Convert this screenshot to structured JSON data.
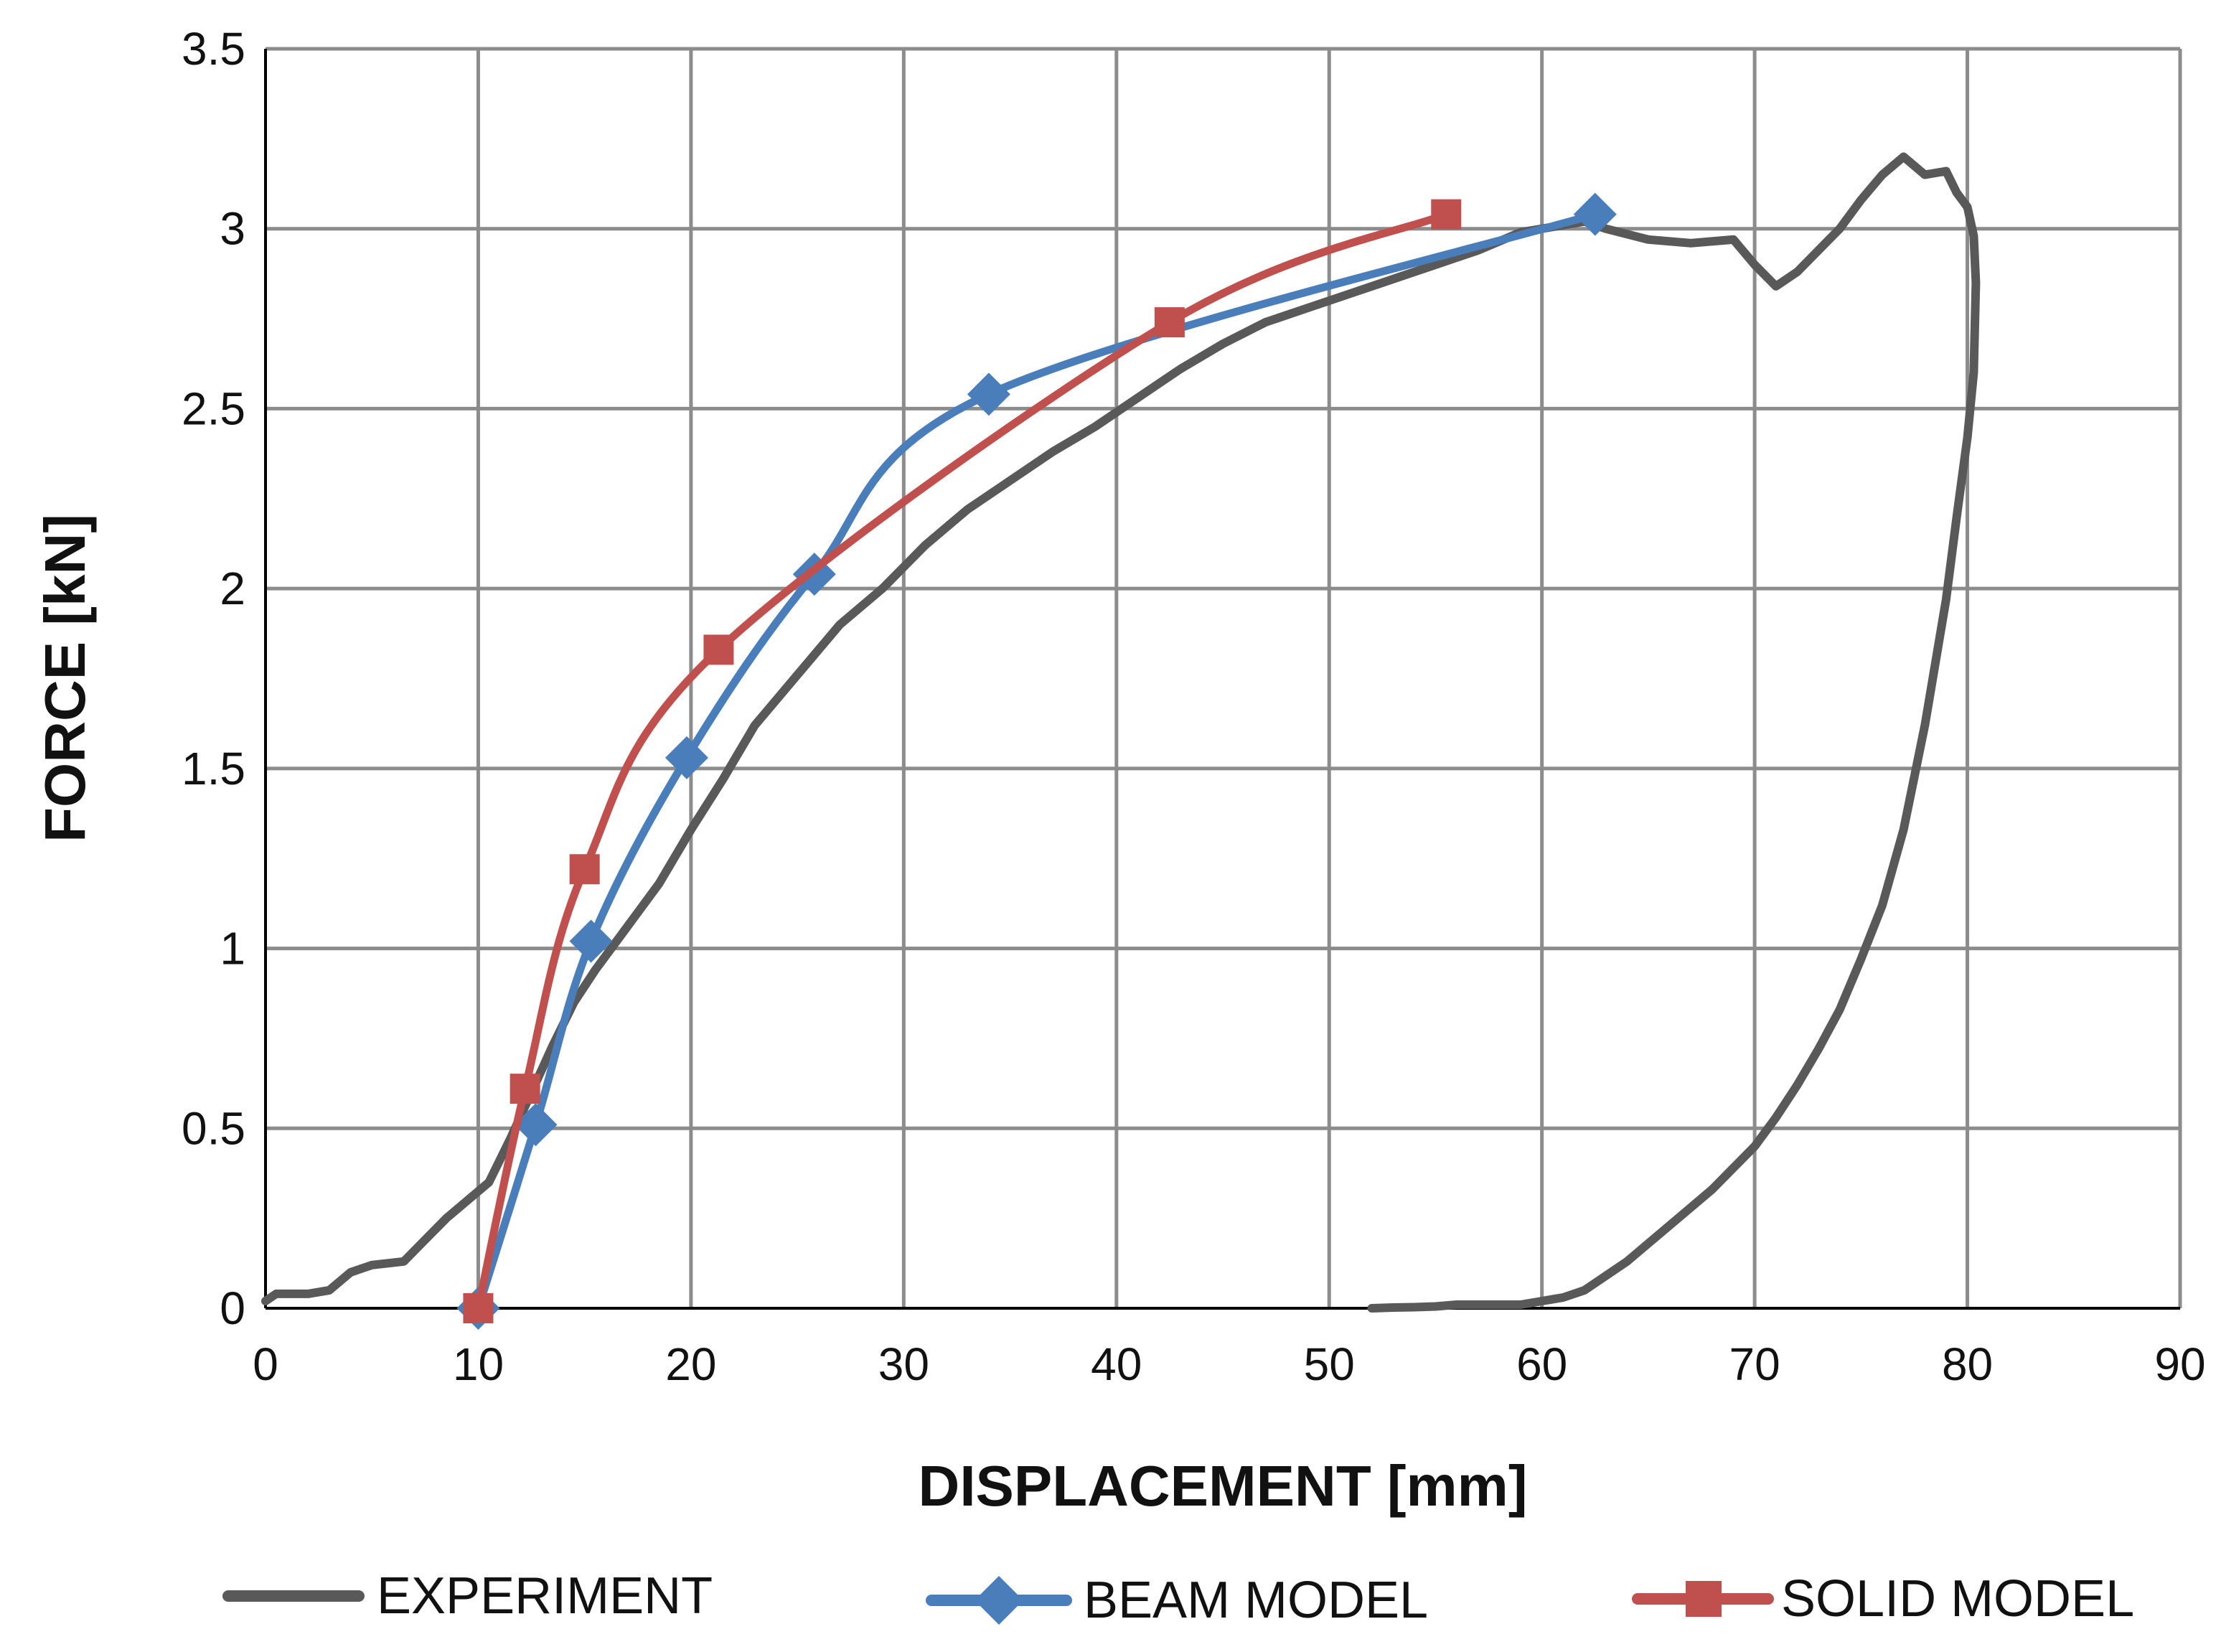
{
  "chart_data": {
    "type": "line",
    "title": "",
    "xlabel": "DISPLACEMENT [mm]",
    "ylabel": "FORCE [kN]",
    "xlim": [
      0,
      90
    ],
    "ylim": [
      0,
      3.5
    ],
    "xticks": [
      0,
      10,
      20,
      30,
      40,
      50,
      60,
      70,
      80,
      90
    ],
    "yticks": [
      0,
      0.5,
      1,
      1.5,
      2,
      2.5,
      3,
      3.5
    ],
    "ytick_labels": [
      "0",
      "0.5",
      "1",
      "1.5",
      "2",
      "2.5",
      "3",
      "3.5"
    ],
    "grid": true,
    "legend_position": "bottom",
    "series": [
      {
        "name": "EXPERIMENT",
        "color": "#595959",
        "marker": "none",
        "x": [
          0,
          0.5,
          2,
          3,
          4,
          5,
          6.5,
          7.5,
          8.5,
          9.5,
          10.5,
          11.5,
          12.5,
          13.5,
          14.5,
          15.5,
          17,
          18.5,
          20,
          21.5,
          23,
          25,
          27,
          29,
          31,
          33,
          35,
          37,
          39,
          41,
          43,
          45,
          47,
          49,
          51,
          53,
          55,
          57,
          59,
          61,
          62,
          63,
          65,
          67,
          69,
          70,
          71,
          72,
          73,
          74,
          75,
          76,
          77,
          78,
          79,
          79.5,
          80,
          80.3,
          80.4,
          80.3,
          80,
          79.5,
          79,
          78,
          77,
          76,
          75,
          74,
          73,
          72,
          71,
          70,
          69,
          68,
          67,
          66,
          65,
          64,
          63,
          62,
          61,
          60,
          59,
          58,
          57,
          56,
          55,
          54,
          53,
          52
        ],
        "y": [
          0.02,
          0.04,
          0.04,
          0.05,
          0.1,
          0.12,
          0.13,
          0.19,
          0.25,
          0.3,
          0.35,
          0.47,
          0.6,
          0.73,
          0.85,
          0.94,
          1.06,
          1.18,
          1.33,
          1.47,
          1.62,
          1.76,
          1.9,
          2.0,
          2.12,
          2.22,
          2.3,
          2.38,
          2.45,
          2.53,
          2.61,
          2.68,
          2.74,
          2.78,
          2.82,
          2.86,
          2.9,
          2.94,
          2.99,
          3.01,
          3.02,
          3.0,
          2.97,
          2.96,
          2.97,
          2.9,
          2.84,
          2.88,
          2.94,
          3.0,
          3.08,
          3.15,
          3.2,
          3.15,
          3.16,
          3.1,
          3.06,
          2.98,
          2.85,
          2.6,
          2.42,
          2.2,
          1.97,
          1.62,
          1.33,
          1.12,
          0.97,
          0.83,
          0.72,
          0.62,
          0.53,
          0.45,
          0.39,
          0.33,
          0.28,
          0.23,
          0.18,
          0.13,
          0.09,
          0.05,
          0.03,
          0.02,
          0.01,
          0.01,
          0.01,
          0.01,
          0.005,
          0.003,
          0.002,
          0.0
        ]
      },
      {
        "name": "BEAM MODEL",
        "color": "#4a7ebb",
        "marker": "diamond",
        "x": [
          10,
          12.7,
          15.3,
          19.8,
          25.8,
          34.0,
          62.5
        ],
        "y": [
          0.0,
          0.51,
          1.02,
          1.53,
          2.04,
          2.54,
          3.04
        ]
      },
      {
        "name": "SOLID MODEL",
        "color": "#c0504d",
        "marker": "square",
        "x": [
          10,
          12.2,
          15.0,
          21.3,
          42.5,
          55.5
        ],
        "y": [
          0.0,
          0.61,
          1.22,
          1.83,
          2.74,
          3.04
        ]
      }
    ]
  }
}
